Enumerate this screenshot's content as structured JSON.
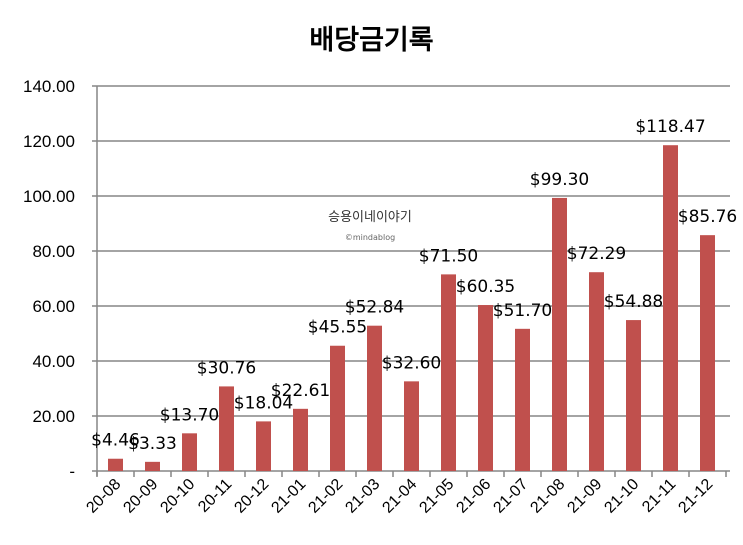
{
  "chart_data": {
    "type": "bar",
    "title": "배당금기록",
    "categories": [
      "20-08",
      "20-09",
      "20-10",
      "20-11",
      "20-12",
      "21-01",
      "21-02",
      "21-03",
      "21-04",
      "21-05",
      "21-06",
      "21-07",
      "21-08",
      "21-09",
      "21-10",
      "21-11",
      "21-12"
    ],
    "values": [
      4.46,
      3.33,
      13.7,
      30.76,
      18.04,
      22.61,
      45.55,
      52.84,
      32.6,
      71.5,
      60.35,
      51.7,
      99.3,
      72.29,
      54.88,
      118.47,
      85.76
    ],
    "data_labels": [
      "$4.46",
      "$3.33",
      "$13.70",
      "$30.76",
      "$18.04",
      "$22.61",
      "$45.55",
      "$52.84",
      "$32.60",
      "$71.50",
      "$60.35",
      "$51.70",
      "$99.30",
      "$72.29",
      "$54.88",
      "$118.47",
      "$85.76"
    ],
    "yticks": [
      "-",
      "20.00",
      "40.00",
      "60.00",
      "80.00",
      "100.00",
      "120.00",
      "140.00"
    ],
    "ylim": [
      0,
      140
    ],
    "grid": true,
    "bar_color": "#C0504D",
    "xlabel": "",
    "ylabel": ""
  },
  "watermark": {
    "line1": "승용이네이야기",
    "line2": "©mindablog"
  }
}
